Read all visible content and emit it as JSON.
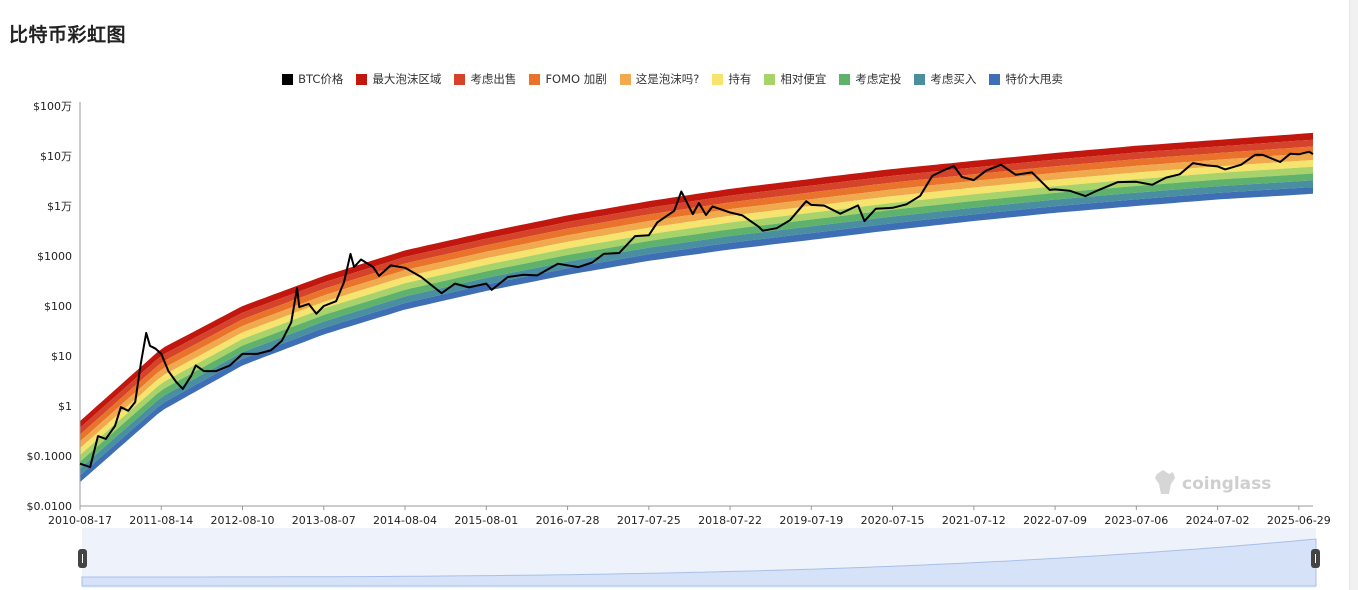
{
  "page": {
    "title": "比特币彩虹图"
  },
  "watermark": "coinglass",
  "legend": [
    {
      "label": "BTC价格",
      "color": "#000000"
    },
    {
      "label": "最大泡沫区域",
      "color": "#c2170f"
    },
    {
      "label": "考虑出售",
      "color": "#d4432a"
    },
    {
      "label": "FOMO 加剧",
      "color": "#e9732a"
    },
    {
      "label": "这是泡沫吗?",
      "color": "#f1a94e"
    },
    {
      "label": "持有",
      "color": "#f6e46e"
    },
    {
      "label": "相对便宜",
      "color": "#a8d26a"
    },
    {
      "label": "考虑定投",
      "color": "#5fb26b"
    },
    {
      "label": "考虑买入",
      "color": "#4a8fa0"
    },
    {
      "label": "特价大甩卖",
      "color": "#3e6fb4"
    }
  ],
  "chart_data": {
    "type": "line",
    "title": "比特币彩虹图",
    "y_scale": "log",
    "ylim": [
      0.01,
      1000000
    ],
    "y_ticks": [
      "$100万",
      "$10万",
      "$1万",
      "$1000",
      "$100",
      "$10",
      "$1",
      "$0.1000",
      "$0.0100"
    ],
    "x_ticks": [
      "2010-08-17",
      "2011-08-14",
      "2012-08-10",
      "2013-08-07",
      "2014-08-04",
      "2015-08-01",
      "2016-07-28",
      "2017-07-25",
      "2018-07-22",
      "2019-07-19",
      "2020-07-15",
      "2021-07-12",
      "2022-07-09",
      "2023-07-06",
      "2024-07-02",
      "2025-06-29"
    ],
    "xlim": [
      "2010-08-17",
      "2025-08-31"
    ],
    "grid": false,
    "legend_position": "top-center",
    "bands": {
      "upper_edge": [
        {
          "x": "2010-08-17",
          "y": 0.5
        },
        {
          "x": "2011-08-14",
          "y": 14
        },
        {
          "x": "2012-08-10",
          "y": 100
        },
        {
          "x": "2013-08-07",
          "y": 400
        },
        {
          "x": "2014-08-04",
          "y": 1300
        },
        {
          "x": "2015-08-01",
          "y": 3000
        },
        {
          "x": "2016-07-28",
          "y": 6500
        },
        {
          "x": "2017-07-25",
          "y": 12500
        },
        {
          "x": "2018-07-22",
          "y": 22000
        },
        {
          "x": "2019-07-19",
          "y": 35000
        },
        {
          "x": "2020-07-15",
          "y": 55000
        },
        {
          "x": "2021-07-12",
          "y": 80000
        },
        {
          "x": "2022-07-09",
          "y": 115000
        },
        {
          "x": "2023-07-06",
          "y": 160000
        },
        {
          "x": "2024-07-02",
          "y": 210000
        },
        {
          "x": "2025-08-31",
          "y": 290000
        }
      ],
      "lower_edge": [
        {
          "x": "2010-08-17",
          "y": 0.03
        },
        {
          "x": "2011-08-14",
          "y": 0.8
        },
        {
          "x": "2012-08-10",
          "y": 6.5
        },
        {
          "x": "2013-08-07",
          "y": 27
        },
        {
          "x": "2014-08-04",
          "y": 85
        },
        {
          "x": "2015-08-01",
          "y": 200
        },
        {
          "x": "2016-07-28",
          "y": 420
        },
        {
          "x": "2017-07-25",
          "y": 800
        },
        {
          "x": "2018-07-22",
          "y": 1350
        },
        {
          "x": "2019-07-19",
          "y": 2100
        },
        {
          "x": "2020-07-15",
          "y": 3300
        },
        {
          "x": "2021-07-12",
          "y": 5000
        },
        {
          "x": "2022-07-09",
          "y": 7300
        },
        {
          "x": "2023-07-06",
          "y": 10000
        },
        {
          "x": "2024-07-02",
          "y": 13500
        },
        {
          "x": "2025-08-31",
          "y": 17500
        }
      ]
    },
    "series": [
      {
        "name": "BTC价格",
        "color": "#000000",
        "points": [
          [
            "2010-08-17",
            0.07
          ],
          [
            "2010-10-01",
            0.06
          ],
          [
            "2010-11-05",
            0.25
          ],
          [
            "2010-12-10",
            0.22
          ],
          [
            "2011-01-20",
            0.4
          ],
          [
            "2011-02-15",
            0.95
          ],
          [
            "2011-03-20",
            0.8
          ],
          [
            "2011-04-20",
            1.2
          ],
          [
            "2011-05-15",
            7
          ],
          [
            "2011-06-08",
            29
          ],
          [
            "2011-06-25",
            16
          ],
          [
            "2011-07-20",
            14
          ],
          [
            "2011-08-14",
            11
          ],
          [
            "2011-09-15",
            5
          ],
          [
            "2011-10-20",
            3
          ],
          [
            "2011-11-18",
            2.2
          ],
          [
            "2011-12-25",
            4
          ],
          [
            "2012-01-15",
            6.5
          ],
          [
            "2012-02-20",
            5
          ],
          [
            "2012-04-15",
            5
          ],
          [
            "2012-06-15",
            6.5
          ],
          [
            "2012-08-10",
            11
          ],
          [
            "2012-08-20",
            11
          ],
          [
            "2012-10-15",
            11
          ],
          [
            "2012-12-15",
            13
          ],
          [
            "2013-02-01",
            20
          ],
          [
            "2013-03-15",
            47
          ],
          [
            "2013-04-10",
            230
          ],
          [
            "2013-04-20",
            95
          ],
          [
            "2013-06-01",
            110
          ],
          [
            "2013-07-05",
            70
          ],
          [
            "2013-08-07",
            100
          ],
          [
            "2013-10-01",
            125
          ],
          [
            "2013-11-05",
            300
          ],
          [
            "2013-12-04",
            1100
          ],
          [
            "2013-12-20",
            600
          ],
          [
            "2014-01-20",
            850
          ],
          [
            "2014-03-15",
            600
          ],
          [
            "2014-04-10",
            400
          ],
          [
            "2014-06-01",
            650
          ],
          [
            "2014-08-04",
            580
          ],
          [
            "2014-10-15",
            380
          ],
          [
            "2015-01-14",
            180
          ],
          [
            "2015-03-15",
            280
          ],
          [
            "2015-05-15",
            235
          ],
          [
            "2015-08-01",
            280
          ],
          [
            "2015-08-25",
            210
          ],
          [
            "2015-11-05",
            380
          ],
          [
            "2016-01-15",
            420
          ],
          [
            "2016-03-15",
            410
          ],
          [
            "2016-06-15",
            700
          ],
          [
            "2016-07-28",
            650
          ],
          [
            "2016-09-15",
            600
          ],
          [
            "2016-11-15",
            740
          ],
          [
            "2017-01-05",
            1100
          ],
          [
            "2017-03-15",
            1150
          ],
          [
            "2017-05-25",
            2500
          ],
          [
            "2017-07-25",
            2600
          ],
          [
            "2017-09-01",
            4700
          ],
          [
            "2017-11-15",
            8000
          ],
          [
            "2017-12-17",
            19500
          ],
          [
            "2018-02-06",
            6900
          ],
          [
            "2018-03-05",
            11500
          ],
          [
            "2018-04-06",
            6600
          ],
          [
            "2018-05-05",
            9800
          ],
          [
            "2018-07-22",
            7400
          ],
          [
            "2018-09-15",
            6500
          ],
          [
            "2018-11-25",
            3900
          ],
          [
            "2018-12-15",
            3200
          ],
          [
            "2019-02-15",
            3600
          ],
          [
            "2019-04-15",
            5200
          ],
          [
            "2019-06-26",
            12500
          ],
          [
            "2019-07-19",
            10500
          ],
          [
            "2019-09-15",
            10200
          ],
          [
            "2019-11-25",
            7000
          ],
          [
            "2020-02-12",
            10300
          ],
          [
            "2020-03-12",
            5000
          ],
          [
            "2020-05-01",
            8800
          ],
          [
            "2020-07-15",
            9200
          ],
          [
            "2020-09-15",
            10800
          ],
          [
            "2020-11-15",
            16000
          ],
          [
            "2021-01-08",
            40000
          ],
          [
            "2021-02-20",
            50000
          ],
          [
            "2021-04-14",
            63000
          ],
          [
            "2021-05-20",
            38000
          ],
          [
            "2021-07-12",
            33000
          ],
          [
            "2021-09-05",
            51000
          ],
          [
            "2021-11-10",
            67000
          ],
          [
            "2022-01-15",
            42000
          ],
          [
            "2022-03-28",
            47000
          ],
          [
            "2022-06-15",
            21000
          ],
          [
            "2022-07-09",
            21500
          ],
          [
            "2022-09-15",
            20000
          ],
          [
            "2022-11-21",
            15800
          ],
          [
            "2023-01-15",
            20500
          ],
          [
            "2023-04-15",
            30000
          ],
          [
            "2023-07-06",
            30500
          ],
          [
            "2023-09-15",
            26500
          ],
          [
            "2023-11-15",
            37000
          ],
          [
            "2024-01-15",
            43000
          ],
          [
            "2024-03-14",
            72000
          ],
          [
            "2024-05-15",
            65000
          ],
          [
            "2024-07-02",
            62000
          ],
          [
            "2024-08-05",
            54000
          ],
          [
            "2024-10-15",
            67000
          ],
          [
            "2024-12-17",
            106000
          ],
          [
            "2025-01-20",
            105000
          ],
          [
            "2025-04-07",
            76000
          ],
          [
            "2025-05-22",
            111000
          ],
          [
            "2025-06-29",
            108000
          ],
          [
            "2025-08-14",
            122000
          ],
          [
            "2025-08-31",
            109000
          ]
        ]
      }
    ]
  }
}
